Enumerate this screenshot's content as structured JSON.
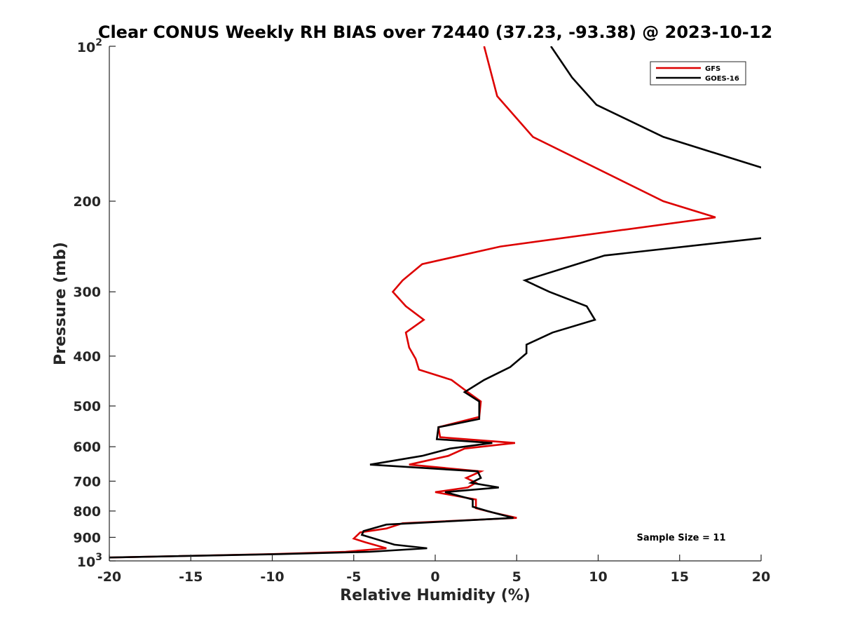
{
  "chart_data": {
    "type": "line",
    "title": "Clear CONUS Weekly RH BIAS over 72440 (37.23, -93.38) @ 2023-10-12",
    "xlabel": "Relative Humidity (%)",
    "ylabel": "Pressure (mb)",
    "xlim": [
      -20,
      20
    ],
    "ylim": [
      100,
      1000
    ],
    "y_scale": "log",
    "y_reversed": true,
    "grid": false,
    "legend_position": "top-right",
    "x_ticks": [
      -20,
      -15,
      -10,
      -5,
      0,
      5,
      10,
      15,
      20
    ],
    "x_tick_labels": [
      "-20",
      "-15",
      "-10",
      "-5",
      "0",
      "5",
      "10",
      "15",
      "20"
    ],
    "y_ticks": [
      200,
      300,
      400,
      500,
      600,
      700,
      800,
      900
    ],
    "y_tick_labels": [
      "200",
      "300",
      "400",
      "500",
      "600",
      "700",
      "800",
      "900"
    ],
    "y_extreme_labels": [
      {
        "value": 100,
        "base": "10",
        "exp": "2"
      },
      {
        "value": 1000,
        "base": "10",
        "exp": "3"
      }
    ],
    "annotation": "Sample Size = 11",
    "series": [
      {
        "name": "GFS",
        "color": "#dd0000",
        "points": [
          [
            3.0,
            100
          ],
          [
            3.8,
            125
          ],
          [
            6.0,
            150
          ],
          [
            14.0,
            200
          ],
          [
            17.2,
            215
          ],
          [
            4.0,
            245
          ],
          [
            -0.8,
            265
          ],
          [
            -2.0,
            285
          ],
          [
            -2.6,
            300
          ],
          [
            -1.8,
            320
          ],
          [
            -0.7,
            340
          ],
          [
            -1.8,
            360
          ],
          [
            -1.6,
            385
          ],
          [
            -1.2,
            405
          ],
          [
            -1.0,
            425
          ],
          [
            1.0,
            445
          ],
          [
            2.0,
            470
          ],
          [
            2.8,
            490
          ],
          [
            2.7,
            525
          ],
          [
            0.2,
            550
          ],
          [
            0.3,
            575
          ],
          [
            4.9,
            590
          ],
          [
            1.8,
            605
          ],
          [
            0.8,
            625
          ],
          [
            -1.6,
            650
          ],
          [
            2.8,
            670
          ],
          [
            1.9,
            690
          ],
          [
            2.5,
            705
          ],
          [
            2.0,
            720
          ],
          [
            0.0,
            735
          ],
          [
            2.5,
            760
          ],
          [
            2.5,
            790
          ],
          [
            3.5,
            805
          ],
          [
            5.0,
            825
          ],
          [
            -2.0,
            845
          ],
          [
            -3.0,
            865
          ],
          [
            -4.6,
            880
          ],
          [
            -5.0,
            905
          ],
          [
            -4.3,
            920
          ],
          [
            -3.0,
            945
          ],
          [
            -5.5,
            960
          ],
          [
            -10.0,
            970
          ],
          [
            -20.0,
            985
          ]
        ]
      },
      {
        "name": "GOES-16",
        "color": "#000000",
        "points": [
          [
            7.1,
            100
          ],
          [
            8.4,
            115
          ],
          [
            9.9,
            130
          ],
          [
            14.0,
            150
          ],
          [
            20.0,
            172
          ],
          [
            25.0,
            200
          ],
          [
            20.0,
            236
          ],
          [
            10.4,
            255
          ],
          [
            5.5,
            285
          ],
          [
            7.0,
            300
          ],
          [
            9.3,
            320
          ],
          [
            9.8,
            340
          ],
          [
            7.2,
            360
          ],
          [
            5.6,
            380
          ],
          [
            5.6,
            395
          ],
          [
            4.6,
            420
          ],
          [
            3.0,
            445
          ],
          [
            1.8,
            470
          ],
          [
            2.7,
            490
          ],
          [
            2.7,
            530
          ],
          [
            0.2,
            550
          ],
          [
            0.1,
            580
          ],
          [
            3.5,
            590
          ],
          [
            0.9,
            605
          ],
          [
            -0.8,
            625
          ],
          [
            -4.0,
            650
          ],
          [
            2.6,
            670
          ],
          [
            2.8,
            690
          ],
          [
            2.2,
            705
          ],
          [
            3.9,
            720
          ],
          [
            0.6,
            735
          ],
          [
            2.3,
            760
          ],
          [
            2.3,
            785
          ],
          [
            3.2,
            800
          ],
          [
            4.8,
            825
          ],
          [
            -3.0,
            850
          ],
          [
            -4.4,
            875
          ],
          [
            -4.5,
            890
          ],
          [
            -2.5,
            930
          ],
          [
            -0.5,
            945
          ],
          [
            -4.0,
            960
          ],
          [
            -9.5,
            970
          ],
          [
            -20.0,
            985
          ]
        ]
      }
    ]
  }
}
